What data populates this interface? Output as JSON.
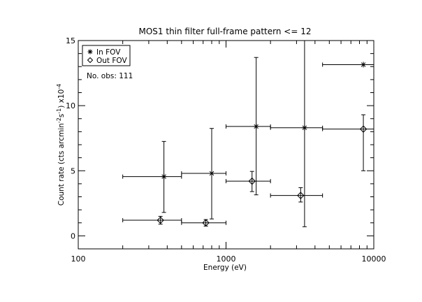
{
  "chart_data": {
    "type": "scatter",
    "title": "MOS1 thin filter full-frame pattern <= 12",
    "xlabel": "Energy (eV)",
    "ylabel_parts": {
      "pre": "Count rate (cts arcmin",
      "sup1": "-2",
      "mid": "s",
      "sup2": "-1",
      "post": ") x10",
      "sup3": "-4"
    },
    "x_scale": "log",
    "xlim": [
      100,
      10000
    ],
    "ylim": [
      -1,
      15
    ],
    "x_ticks": [
      100,
      1000,
      10000
    ],
    "x_tick_labels": [
      "100",
      "1000",
      "10000"
    ],
    "y_ticks": [
      0,
      5,
      10,
      15
    ],
    "y_tick_labels": [
      "0",
      "5",
      "10",
      "15"
    ],
    "grid": false,
    "legend_position": "top-left",
    "annotation": "No. obs: 111",
    "series": [
      {
        "name": "In FOV",
        "marker": "asterisk",
        "points": [
          {
            "x": 380,
            "xlo": 200,
            "xhi": 500,
            "y": 4.55,
            "ylo": 1.8,
            "yhi": 7.25
          },
          {
            "x": 800,
            "xlo": 500,
            "xhi": 1000,
            "y": 4.8,
            "ylo": 1.3,
            "yhi": 8.25
          },
          {
            "x": 1600,
            "xlo": 1000,
            "xhi": 2000,
            "y": 8.4,
            "ylo": 3.15,
            "yhi": 13.7
          },
          {
            "x": 3400,
            "xlo": 2000,
            "xhi": 4500,
            "y": 8.3,
            "ylo": 0.7,
            "yhi": 15.0
          },
          {
            "x": 8500,
            "xlo": 4500,
            "xhi": 10000,
            "y": 13.15,
            "ylo": 13.15,
            "yhi": 13.15
          }
        ]
      },
      {
        "name": "Out FOV",
        "marker": "diamond",
        "points": [
          {
            "x": 360,
            "xlo": 200,
            "xhi": 500,
            "y": 1.2,
            "ylo": 0.9,
            "yhi": 1.5
          },
          {
            "x": 730,
            "xlo": 500,
            "xhi": 1000,
            "y": 1.0,
            "ylo": 0.75,
            "yhi": 1.25
          },
          {
            "x": 1500,
            "xlo": 1000,
            "xhi": 2000,
            "y": 4.2,
            "ylo": 3.4,
            "yhi": 4.95
          },
          {
            "x": 3200,
            "xlo": 2000,
            "xhi": 4500,
            "y": 3.1,
            "ylo": 2.6,
            "yhi": 3.7
          },
          {
            "x": 8500,
            "xlo": 4500,
            "xhi": 10000,
            "y": 8.2,
            "ylo": 5.0,
            "yhi": 9.3
          }
        ]
      }
    ]
  }
}
